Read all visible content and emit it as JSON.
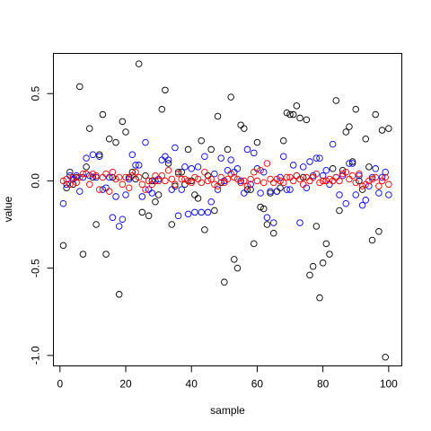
{
  "chart_data": {
    "type": "scatter",
    "xlabel": "sample",
    "ylabel": "value",
    "xlim": [
      -2,
      104
    ],
    "ylim": [
      -1.06,
      0.73
    ],
    "x_ticks": [
      0,
      20,
      40,
      60,
      80,
      100
    ],
    "x_tick_labels": [
      "0",
      "20",
      "40",
      "60",
      "80",
      "100"
    ],
    "y_ticks": [
      -1.0,
      -0.5,
      0.0,
      0.5
    ],
    "y_tick_labels": [
      "-1.0",
      "-0.5",
      "0.0",
      "0.5"
    ],
    "marker": "open-circle",
    "grid": false,
    "series": [
      {
        "color": "#000000",
        "x": [
          1,
          2,
          3,
          4,
          5,
          6,
          7,
          8,
          9,
          10,
          11,
          12,
          13,
          14,
          15,
          16,
          17,
          18,
          19,
          20,
          21,
          22,
          23,
          24,
          25,
          26,
          27,
          28,
          29,
          30,
          31,
          32,
          33,
          34,
          35,
          36,
          37,
          38,
          39,
          40,
          41,
          42,
          43,
          44,
          45,
          46,
          47,
          48,
          49,
          50,
          51,
          52,
          53,
          54,
          55,
          56,
          57,
          58,
          59,
          60,
          61,
          62,
          63,
          64,
          65,
          66,
          67,
          68,
          69,
          70,
          71,
          72,
          73,
          74,
          75,
          76,
          77,
          78,
          79,
          80,
          81,
          82,
          83,
          84,
          85,
          86,
          87,
          88,
          89,
          90,
          91,
          92,
          93,
          94,
          95,
          96,
          97,
          98,
          99,
          100
        ],
        "y": [
          -0.37,
          -0.04,
          0.05,
          -0.02,
          0.02,
          0.54,
          -0.42,
          0.08,
          0.3,
          0.02,
          -0.25,
          0.15,
          0.38,
          -0.42,
          0.24,
          0.02,
          0.22,
          -0.65,
          0.34,
          0.28,
          0.02,
          0.05,
          0.01,
          0.67,
          -0.18,
          0.03,
          -0.2,
          0.0,
          -0.12,
          -0.08,
          0.41,
          0.52,
          0.1,
          -0.25,
          -0.03,
          0.05,
          0.05,
          -0.02,
          0.18,
          0.0,
          -0.08,
          -0.1,
          0.23,
          -0.28,
          0.03,
          0.18,
          -0.17,
          0.37,
          -0.01,
          -0.58,
          0.18,
          0.48,
          -0.45,
          -0.5,
          0.32,
          0.3,
          -0.05,
          -0.05,
          -0.36,
          0.22,
          -0.15,
          -0.16,
          -0.25,
          -0.07,
          -0.3,
          -0.06,
          -0.04,
          0.23,
          0.39,
          0.38,
          0.38,
          0.43,
          0.36,
          0.02,
          0.35,
          -0.54,
          -0.49,
          -0.26,
          -0.67,
          -0.47,
          -0.36,
          -0.42,
          0.07,
          0.46,
          -0.17,
          0.06,
          0.28,
          0.31,
          0.11,
          0.41,
          0.0,
          -0.05,
          0.24,
          0.08,
          -0.34,
          0.38,
          -0.29,
          0.29,
          -1.01,
          0.3
        ]
      },
      {
        "color": "#0000FF",
        "x": [
          1,
          2,
          3,
          4,
          5,
          6,
          7,
          8,
          9,
          10,
          11,
          12,
          13,
          14,
          15,
          16,
          17,
          18,
          19,
          20,
          21,
          22,
          23,
          24,
          25,
          26,
          27,
          28,
          29,
          30,
          31,
          32,
          33,
          34,
          35,
          36,
          37,
          38,
          39,
          40,
          41,
          42,
          43,
          44,
          45,
          46,
          47,
          48,
          49,
          50,
          51,
          52,
          53,
          54,
          55,
          56,
          57,
          58,
          59,
          60,
          61,
          62,
          63,
          64,
          65,
          66,
          67,
          68,
          69,
          70,
          71,
          72,
          73,
          74,
          75,
          76,
          77,
          78,
          79,
          80,
          81,
          82,
          83,
          84,
          85,
          86,
          87,
          88,
          89,
          90,
          91,
          92,
          93,
          94,
          95,
          96,
          97,
          98,
          99,
          100
        ],
        "y": [
          -0.13,
          -0.02,
          0.03,
          0.01,
          0.03,
          -0.06,
          0.02,
          0.13,
          0.03,
          0.15,
          0.02,
          0.14,
          -0.05,
          -0.04,
          0.02,
          -0.21,
          -0.09,
          -0.26,
          -0.22,
          -0.08,
          0.01,
          0.15,
          0.09,
          0.09,
          -0.09,
          0.22,
          -0.05,
          -0.07,
          0.0,
          0.01,
          0.12,
          0.14,
          0.12,
          -0.05,
          0.19,
          -0.2,
          -0.05,
          0.08,
          -0.19,
          0.07,
          -0.18,
          0.08,
          -0.18,
          0.14,
          -0.18,
          -0.12,
          0.04,
          -0.05,
          0.13,
          0.0,
          0.06,
          0.12,
          0.05,
          0.07,
          0.0,
          -0.07,
          0.18,
          -0.02,
          0.16,
          0.07,
          -0.07,
          0.05,
          -0.21,
          -0.06,
          -0.24,
          -0.06,
          0.02,
          0.14,
          -0.05,
          -0.05,
          0.09,
          0.03,
          -0.24,
          0.08,
          -0.04,
          0.11,
          0.03,
          0.13,
          0.13,
          0.03,
          0.06,
          -0.02,
          0.21,
          0.02,
          -0.08,
          0.03,
          -0.13,
          0.1,
          0.1,
          -0.08,
          0.03,
          -0.14,
          -0.11,
          -0.03,
          0.02,
          0.07,
          -0.07,
          0.02,
          0.05,
          -0.08
        ]
      },
      {
        "color": "#FF0000",
        "x": [
          1,
          2,
          3,
          4,
          5,
          6,
          7,
          8,
          9,
          10,
          11,
          12,
          13,
          14,
          15,
          16,
          17,
          18,
          19,
          20,
          21,
          22,
          23,
          24,
          25,
          26,
          27,
          28,
          29,
          30,
          31,
          32,
          33,
          34,
          35,
          36,
          37,
          38,
          39,
          40,
          41,
          42,
          43,
          44,
          45,
          46,
          47,
          48,
          49,
          50,
          51,
          52,
          53,
          54,
          55,
          56,
          57,
          58,
          59,
          60,
          61,
          62,
          63,
          64,
          65,
          66,
          67,
          68,
          69,
          70,
          71,
          72,
          73,
          74,
          75,
          76,
          77,
          78,
          79,
          80,
          81,
          82,
          83,
          84,
          85,
          86,
          87,
          88,
          89,
          90,
          91,
          92,
          93,
          94,
          95,
          96,
          97,
          98,
          99,
          100
        ],
        "y": [
          0.0,
          0.01,
          -0.02,
          0.02,
          -0.01,
          0.02,
          0.04,
          0.04,
          -0.02,
          0.04,
          0.03,
          -0.05,
          0.02,
          0.04,
          -0.06,
          0.05,
          0.01,
          0.02,
          -0.02,
          0.02,
          -0.04,
          0.03,
          0.05,
          0.02,
          -0.02,
          -0.05,
          0.0,
          -0.02,
          0.03,
          0.0,
          0.03,
          0.0,
          0.06,
          0.01,
          -0.02,
          0.04,
          0.01,
          0.01,
          0.0,
          -0.01,
          0.02,
          0.01,
          -0.01,
          0.05,
          0.0,
          0.01,
          -0.02,
          -0.03,
          0.02,
          -0.01,
          0.01,
          0.04,
          0.02,
          0.01,
          -0.01,
          0.0,
          -0.03,
          0.01,
          0.05,
          0.0,
          0.06,
          -0.01,
          0.1,
          0.01,
          -0.01,
          0.01,
          0.0,
          -0.01,
          0.02,
          0.02,
          0.0,
          0.03,
          0.01,
          -0.02,
          0.02,
          0.0,
          0.02,
          0.04,
          -0.01,
          0.0,
          0.0,
          0.01,
          0.0,
          0.02,
          0.0,
          0.04,
          0.05,
          0.01,
          0.03,
          -0.01,
          0.04,
          -0.03,
          -0.02,
          0.0,
          0.01,
          0.02,
          -0.03,
          0.0,
          0.02,
          -0.02
        ]
      }
    ]
  }
}
